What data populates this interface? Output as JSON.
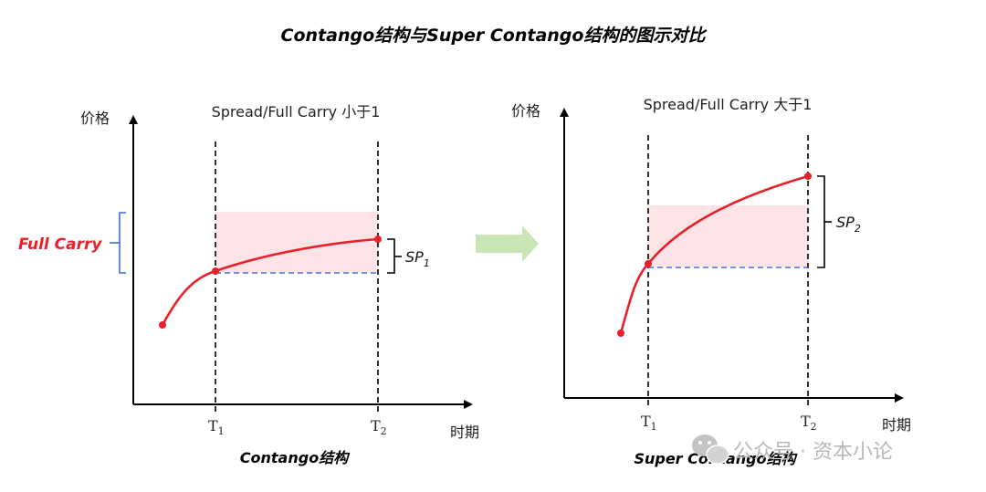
{
  "title": "Contango结构与Super Contango结构的图示对比",
  "left": {
    "header": "Spread/Full Carry 小于1",
    "y_axis_label": "价格",
    "x_axis_label": "时期",
    "t1_main": "T",
    "t1_sub": "1",
    "t2_main": "T",
    "t2_sub": "2",
    "sp_main": "SP",
    "sp_sub": "1",
    "full_carry_label": "Full Carry",
    "caption": "Contango结构"
  },
  "right": {
    "header": "Spread/Full Carry 大于1",
    "y_axis_label": "价格",
    "x_axis_label": "时期",
    "t1_main": "T",
    "t1_sub": "1",
    "t2_main": "T",
    "t2_sub": "2",
    "sp_main": "SP",
    "sp_sub": "2",
    "caption": "Super Contango结构"
  },
  "watermark": "公众号 · 资本小论",
  "colors": {
    "curve": "#e8202a",
    "shade": "#fbe3e6",
    "dashed_blue": "#4a6fd8",
    "bracket_blue": "#3b6fd4",
    "arrow_green": "#c9e5b5",
    "axis": "#000000"
  }
}
